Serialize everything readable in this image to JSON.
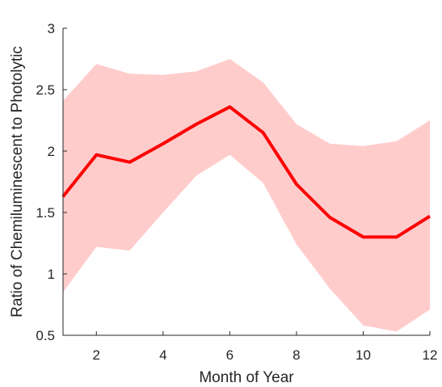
{
  "chart_data": {
    "type": "line",
    "title": "",
    "xlabel": "Month of Year",
    "ylabel": "Ratio of Chemiluminescent to Photolytic",
    "xlim": [
      1,
      12
    ],
    "ylim": [
      0.5,
      3
    ],
    "xticks": [
      2,
      4,
      6,
      8,
      10,
      12
    ],
    "yticks": [
      0.5,
      1,
      1.5,
      2,
      2.5,
      3
    ],
    "ytick_labels": [
      "0.5",
      "1",
      "1.5",
      "2",
      "2.5",
      "3"
    ],
    "grid": false,
    "x": [
      1,
      2,
      3,
      4,
      5,
      6,
      7,
      8,
      9,
      10,
      11,
      12
    ],
    "series": [
      {
        "values": [
          1.63,
          1.97,
          1.91,
          2.06,
          2.22,
          2.36,
          2.15,
          1.73,
          1.46,
          1.3,
          1.3,
          1.47
        ],
        "color": "#ff0000"
      }
    ],
    "band": {
      "upper": [
        2.41,
        2.71,
        2.63,
        2.62,
        2.65,
        2.75,
        2.56,
        2.22,
        2.06,
        2.04,
        2.08,
        2.25
      ],
      "lower": [
        0.85,
        1.22,
        1.19,
        1.5,
        1.8,
        1.97,
        1.74,
        1.24,
        0.88,
        0.58,
        0.53,
        0.71
      ],
      "color": "#ffcccc"
    }
  }
}
